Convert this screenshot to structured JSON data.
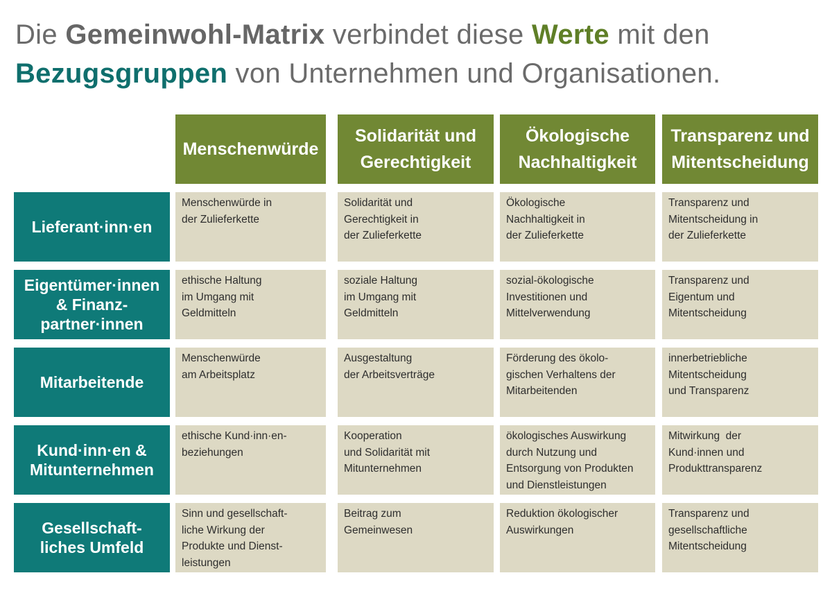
{
  "title": {
    "line1": [
      "Die ",
      "Gemeinwohl-Matrix",
      " verbindet diese ",
      "Werte",
      " mit den"
    ],
    "line2": [
      "Bezugsgruppen",
      " von Unternehmen und Organisationen."
    ]
  },
  "columns": [
    [
      "Menschenwürde"
    ],
    [
      "Solidarität und",
      "Gerechtigkeit"
    ],
    [
      "Ökologische",
      "Nachhaltigkeit"
    ],
    [
      "Transparenz und",
      "Mitentscheidung"
    ]
  ],
  "rows": [
    {
      "label": [
        "Lieferant·inn·en"
      ],
      "cells": [
        [
          "Menschenwürde in",
          "der Zulieferkette"
        ],
        [
          "Solidarität und",
          "Gerechtigkeit in",
          "der Zulieferkette"
        ],
        [
          "Ökologische",
          "Nachhaltigkeit in",
          "der Zulieferkette"
        ],
        [
          "Transparenz und",
          "Mitentscheidung in",
          "der Zulieferkette"
        ]
      ]
    },
    {
      "label": [
        "Eigentümer·innen",
        "& Finanz-",
        "partner·innen"
      ],
      "cells": [
        [
          "ethische Haltung",
          "im Umgang mit",
          "Geldmitteln"
        ],
        [
          "soziale Haltung",
          "im Umgang mit",
          "Geldmitteln"
        ],
        [
          "sozial-ökologische",
          "Investitionen und",
          "Mittelverwendung"
        ],
        [
          "Transparenz und",
          "Eigentum und",
          "Mitentscheidung"
        ]
      ]
    },
    {
      "label": [
        "Mitarbeitende"
      ],
      "cells": [
        [
          "Menschenwürde",
          "am Arbeitsplatz"
        ],
        [
          "Ausgestaltung",
          "der Arbeitsverträge"
        ],
        [
          "Förderung des ökolo-",
          "gischen Verhaltens der",
          "Mitarbeitenden"
        ],
        [
          "innerbetriebliche",
          "Mitentscheidung",
          "und Transparenz"
        ]
      ]
    },
    {
      "label": [
        "Kund·inn·en &",
        "Mitunternehmen"
      ],
      "cells": [
        [
          "ethische Kund·inn·en-",
          "beziehungen"
        ],
        [
          "Kooperation",
          "und Solidarität mit",
          "Mitunternehmen"
        ],
        [
          "ökologisches Auswirkung",
          "durch Nutzung und",
          "Entsorgung von Produkten",
          "und Dienstleistungen"
        ],
        [
          "Mitwirkung  der",
          "Kund·innen und",
          "Produkttransparenz"
        ]
      ]
    },
    {
      "label": [
        "Gesellschaft-",
        "liches Umfeld"
      ],
      "cells": [
        [
          "Sinn und gesellschaft-",
          "liche Wirkung der",
          "Produkte und Dienst-",
          "leistungen"
        ],
        [
          "Beitrag zum",
          "Gemeinwesen"
        ],
        [
          "Reduktion ökologischer",
          "Auswirkungen"
        ],
        [
          "Transparenz und",
          "gesellschaftliche",
          "Mitentscheidung"
        ]
      ]
    }
  ]
}
